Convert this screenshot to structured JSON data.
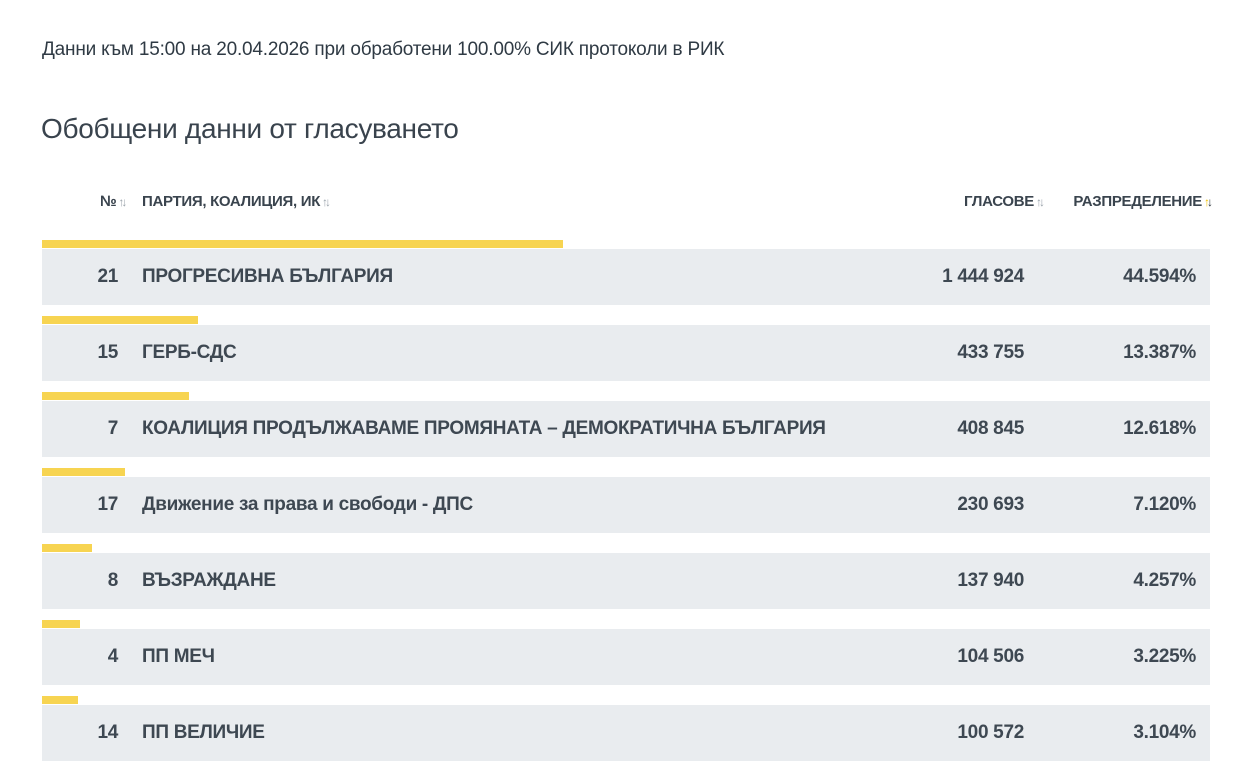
{
  "status_line": "Данни към 15:00 на 20.04.2026 при обработени 100.00% СИК протоколи в РИК",
  "section_title": "Обобщени данни от гласуването",
  "columns": {
    "number": "№",
    "party": "ПАРТИЯ, КОАЛИЦИЯ, ИК",
    "votes": "ГЛАСОВЕ",
    "distribution": "РАЗПРЕДЕЛЕНИЕ"
  },
  "sort": {
    "active_column": "distribution",
    "direction": "descending"
  },
  "bar_color": "#f7d451",
  "rows": [
    {
      "number": "21",
      "party": "ПРОГРЕСИВНА БЪЛГАРИЯ",
      "votes": "1 444 924",
      "percent": "44.594%",
      "share": 44.594
    },
    {
      "number": "15",
      "party": "ГЕРБ-СДС",
      "votes": "433 755",
      "percent": "13.387%",
      "share": 13.387
    },
    {
      "number": "7",
      "party": "КОАЛИЦИЯ ПРОДЪЛЖАВАМЕ ПРОМЯНАТА – ДЕМОКРАТИЧНА БЪЛГАРИЯ",
      "votes": "408 845",
      "percent": "12.618%",
      "share": 12.618
    },
    {
      "number": "17",
      "party": "Движение за права и свободи - ДПС",
      "votes": "230 693",
      "percent": "7.120%",
      "share": 7.12
    },
    {
      "number": "8",
      "party": "ВЪЗРАЖДАНЕ",
      "votes": "137 940",
      "percent": "4.257%",
      "share": 4.257
    },
    {
      "number": "4",
      "party": "ПП МЕЧ",
      "votes": "104 506",
      "percent": "3.225%",
      "share": 3.225
    },
    {
      "number": "14",
      "party": "ПП ВЕЛИЧИЕ",
      "votes": "100 572",
      "percent": "3.104%",
      "share": 3.104
    }
  ]
}
